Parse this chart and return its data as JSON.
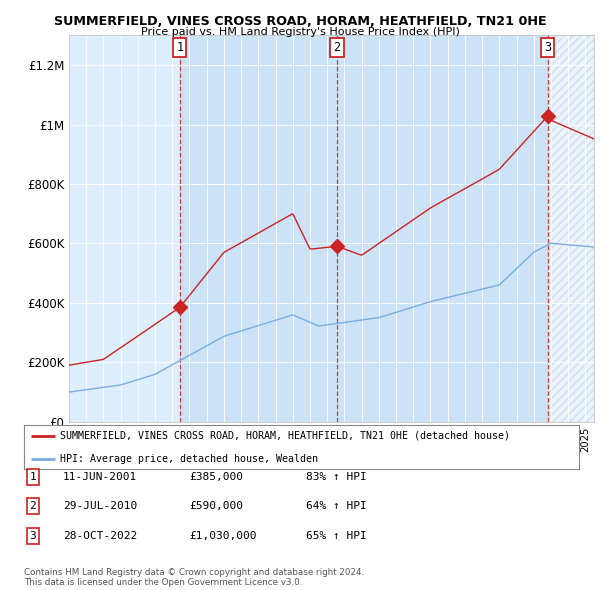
{
  "title": "SUMMERFIELD, VINES CROSS ROAD, HORAM, HEATHFIELD, TN21 0HE",
  "subtitle": "Price paid vs. HM Land Registry's House Price Index (HPI)",
  "legend_line1": "SUMMERFIELD, VINES CROSS ROAD, HORAM, HEATHFIELD, TN21 0HE (detached house)",
  "legend_line2": "HPI: Average price, detached house, Wealden",
  "transactions": [
    {
      "num": 1,
      "date": "11-JUN-2001",
      "price": 385000,
      "pct": "83%",
      "dir": "↑"
    },
    {
      "num": 2,
      "date": "29-JUL-2010",
      "price": 590000,
      "pct": "64%",
      "dir": "↑"
    },
    {
      "num": 3,
      "date": "28-OCT-2022",
      "price": 1030000,
      "pct": "65%",
      "dir": "↑"
    }
  ],
  "transaction_dates_decimal": [
    2001.44,
    2010.57,
    2022.82
  ],
  "footer": "Contains HM Land Registry data © Crown copyright and database right 2024.\nThis data is licensed under the Open Government Licence v3.0.",
  "hpi_color": "#7aade0",
  "price_color": "#cc2222",
  "vline_color": "#cc2222",
  "background_color": "#ddeeff",
  "shade_color": "#cce0f5",
  "ylim": [
    0,
    1300000
  ],
  "xlim_start": 1995.0,
  "xlim_end": 2025.5
}
